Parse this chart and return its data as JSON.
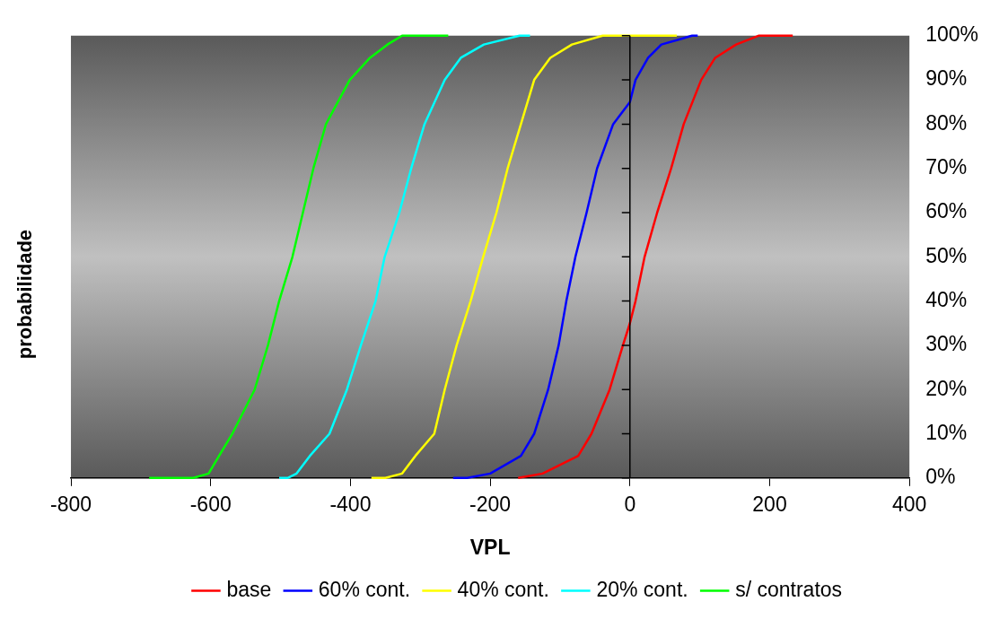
{
  "chart_data": {
    "type": "line",
    "xlabel": "VPL",
    "ylabel": "probabilidade",
    "xlim": [
      -800,
      400
    ],
    "xticks": [
      -800,
      -600,
      -400,
      -200,
      0,
      200,
      400
    ],
    "ylim": [
      0,
      100
    ],
    "yticks": [
      {
        "value": 0,
        "label": "0%"
      },
      {
        "value": 10,
        "label": "10%"
      },
      {
        "value": 20,
        "label": "20%"
      },
      {
        "value": 30,
        "label": "30%"
      },
      {
        "value": 40,
        "label": "40%"
      },
      {
        "value": 50,
        "label": "50%"
      },
      {
        "value": 60,
        "label": "60%"
      },
      {
        "value": 70,
        "label": "70%"
      },
      {
        "value": 80,
        "label": "80%"
      },
      {
        "value": 90,
        "label": "90%"
      },
      {
        "value": 100,
        "label": "100%"
      }
    ],
    "grid": false,
    "legend": "bottom",
    "marker": "none",
    "line_style": "solid",
    "ref_lines": [
      {
        "axis": "x",
        "value": 0,
        "color": "#000000"
      }
    ],
    "series": [
      {
        "name": "base",
        "color": "#ff0000",
        "x": [
          -160,
          -125,
          -74,
          -55,
          -29,
          -10,
          0,
          8,
          21,
          39,
          59,
          77,
          102,
          122,
          152,
          184,
          233
        ],
        "values": [
          0,
          1,
          5,
          10,
          20,
          30,
          35,
          40,
          50,
          60,
          70,
          80,
          90,
          95,
          98,
          100,
          100
        ]
      },
      {
        "name": "60% cont.",
        "color": "#0000ff",
        "x": [
          -253,
          -233,
          -200,
          -156,
          -137,
          -117,
          -102,
          -91,
          -78,
          -62,
          -47,
          -24,
          0,
          8,
          26,
          45,
          89,
          97
        ],
        "values": [
          0,
          0,
          1,
          5,
          10,
          20,
          30,
          40,
          50,
          60,
          70,
          80,
          85,
          90,
          95,
          98,
          100,
          100
        ]
      },
      {
        "name": "40% cont.",
        "color": "#ffff00",
        "x": [
          -370,
          -350,
          -326,
          -307,
          -280,
          -265,
          -248,
          -228,
          -210,
          -191,
          -175,
          -156,
          -137,
          -114,
          -83,
          -39,
          67
        ],
        "values": [
          0,
          0,
          1,
          5,
          10,
          20,
          30,
          40,
          50,
          60,
          70,
          80,
          90,
          95,
          98,
          100,
          100
        ]
      },
      {
        "name": "20% cont.",
        "color": "#00ffff",
        "x": [
          -502,
          -490,
          -477,
          -458,
          -430,
          -405,
          -385,
          -364,
          -351,
          -330,
          -313,
          -294,
          -265,
          -242,
          -209,
          -158,
          -143
        ],
        "values": [
          0,
          0,
          1,
          5,
          10,
          20,
          30,
          40,
          50,
          60,
          70,
          80,
          90,
          95,
          98,
          100,
          100
        ]
      },
      {
        "name": "s/ contratos",
        "color": "#00ff00",
        "x": [
          -688,
          -625,
          -603,
          -588,
          -569,
          -537,
          -518,
          -502,
          -483,
          -468,
          -453,
          -435,
          -401,
          -372,
          -347,
          -326,
          -260
        ],
        "values": [
          0,
          0,
          1,
          5,
          10,
          20,
          30,
          40,
          50,
          60,
          70,
          80,
          90,
          95,
          98,
          100,
          100
        ]
      }
    ]
  }
}
